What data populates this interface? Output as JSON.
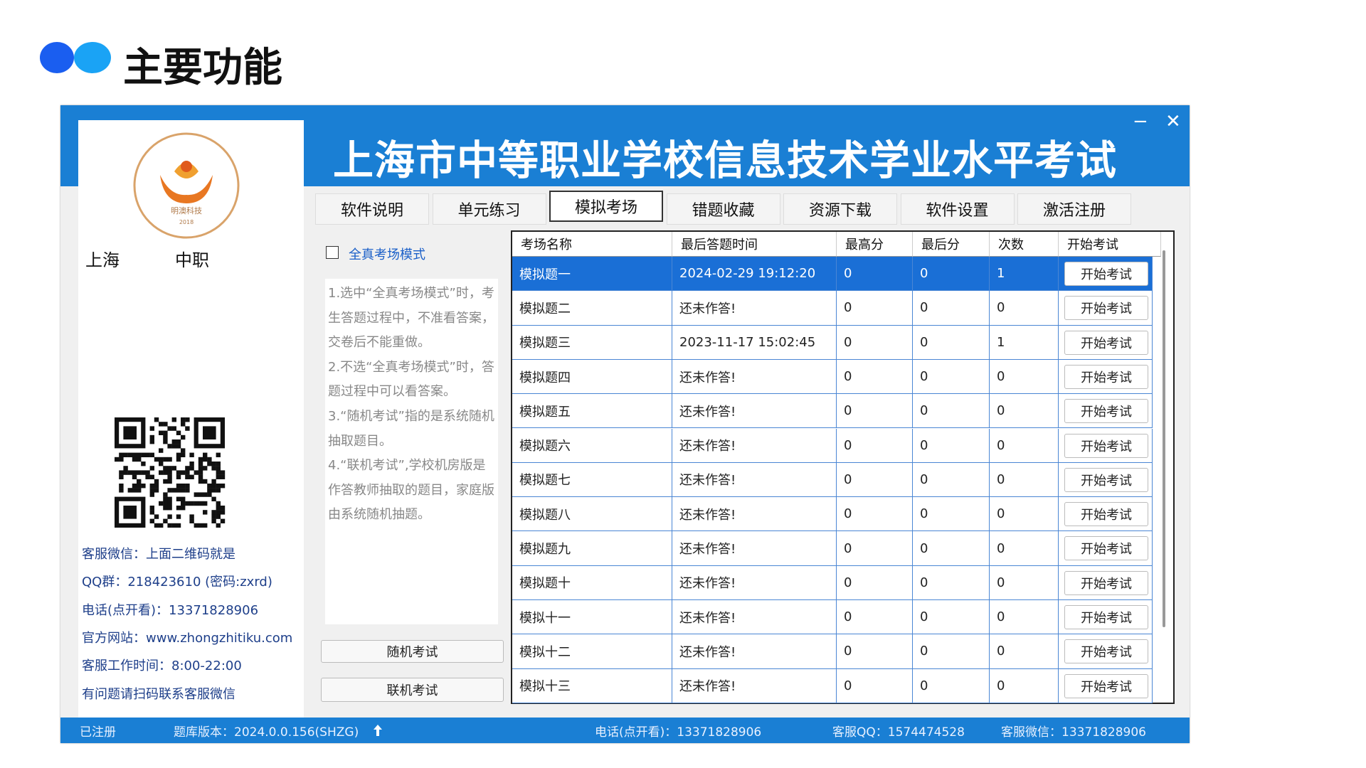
{
  "header": {
    "title": "主要功能"
  },
  "app": {
    "title": "上海市中等职业学校信息技术学业水平考试",
    "tabs": [
      "软件说明",
      "单元练习",
      "模拟考场",
      "错题收藏",
      "资源下载",
      "软件设置",
      "激活注册"
    ]
  },
  "logo": {
    "name": "明澳科技",
    "year": "2018"
  },
  "left": {
    "region": "上海",
    "level": "中职",
    "contacts": [
      "客服微信：上面二维码就是",
      "QQ群：218423610 (密码:zxrd)",
      "电话(点开看)：13371828906",
      "官方网站：www.zhongzhitiku.com",
      "客服工作时间：8:00-22:00",
      "有问题请扫码联系客服微信"
    ]
  },
  "middle": {
    "checkbox_label": "全真考场模式",
    "instructions": [
      "1.选中“全真考场模式”时，考生答题过程中，不准看答案，交卷后不能重做。",
      "2.不选“全真考场模式”时，答题过程中可以看答案。",
      "3.“随机考试”指的是系统随机抽取题目。",
      "4.“联机考试”,学校机房版是作答教师抽取的题目，家庭版由系统随机抽题。"
    ],
    "buttons": [
      "随机考试",
      "联机考试"
    ]
  },
  "table": {
    "columns": [
      "考场名称",
      "最后答题时间",
      "最高分",
      "最后分",
      "次数",
      "开始考试"
    ],
    "button_label": "开始考试",
    "rows": [
      [
        "模拟题一",
        "2024-02-29 19:12:20",
        0,
        0,
        1
      ],
      [
        "模拟题二",
        "还未作答!",
        0,
        0,
        0
      ],
      [
        "模拟题三",
        "2023-11-17 15:02:45",
        0,
        0,
        1
      ],
      [
        "模拟题四",
        "还未作答!",
        0,
        0,
        0
      ],
      [
        "模拟题五",
        "还未作答!",
        0,
        0,
        0
      ],
      [
        "模拟题六",
        "还未作答!",
        0,
        0,
        0
      ],
      [
        "模拟题七",
        "还未作答!",
        0,
        0,
        0
      ],
      [
        "模拟题八",
        "还未作答!",
        0,
        0,
        0
      ],
      [
        "模拟题九",
        "还未作答!",
        0,
        0,
        0
      ],
      [
        "模拟题十",
        "还未作答!",
        0,
        0,
        0
      ],
      [
        "模拟十一",
        "还未作答!",
        0,
        0,
        0
      ],
      [
        "模拟十二",
        "还未作答!",
        0,
        0,
        0
      ],
      [
        "模拟十三",
        "还未作答!",
        0,
        0,
        0
      ]
    ]
  },
  "footer": [
    "已注册",
    "题库版本：2024.0.0.156(SHZG)",
    "电话(点开看)：13371828906",
    "客服QQ：1574474528",
    "客服微信：13371828906"
  ]
}
